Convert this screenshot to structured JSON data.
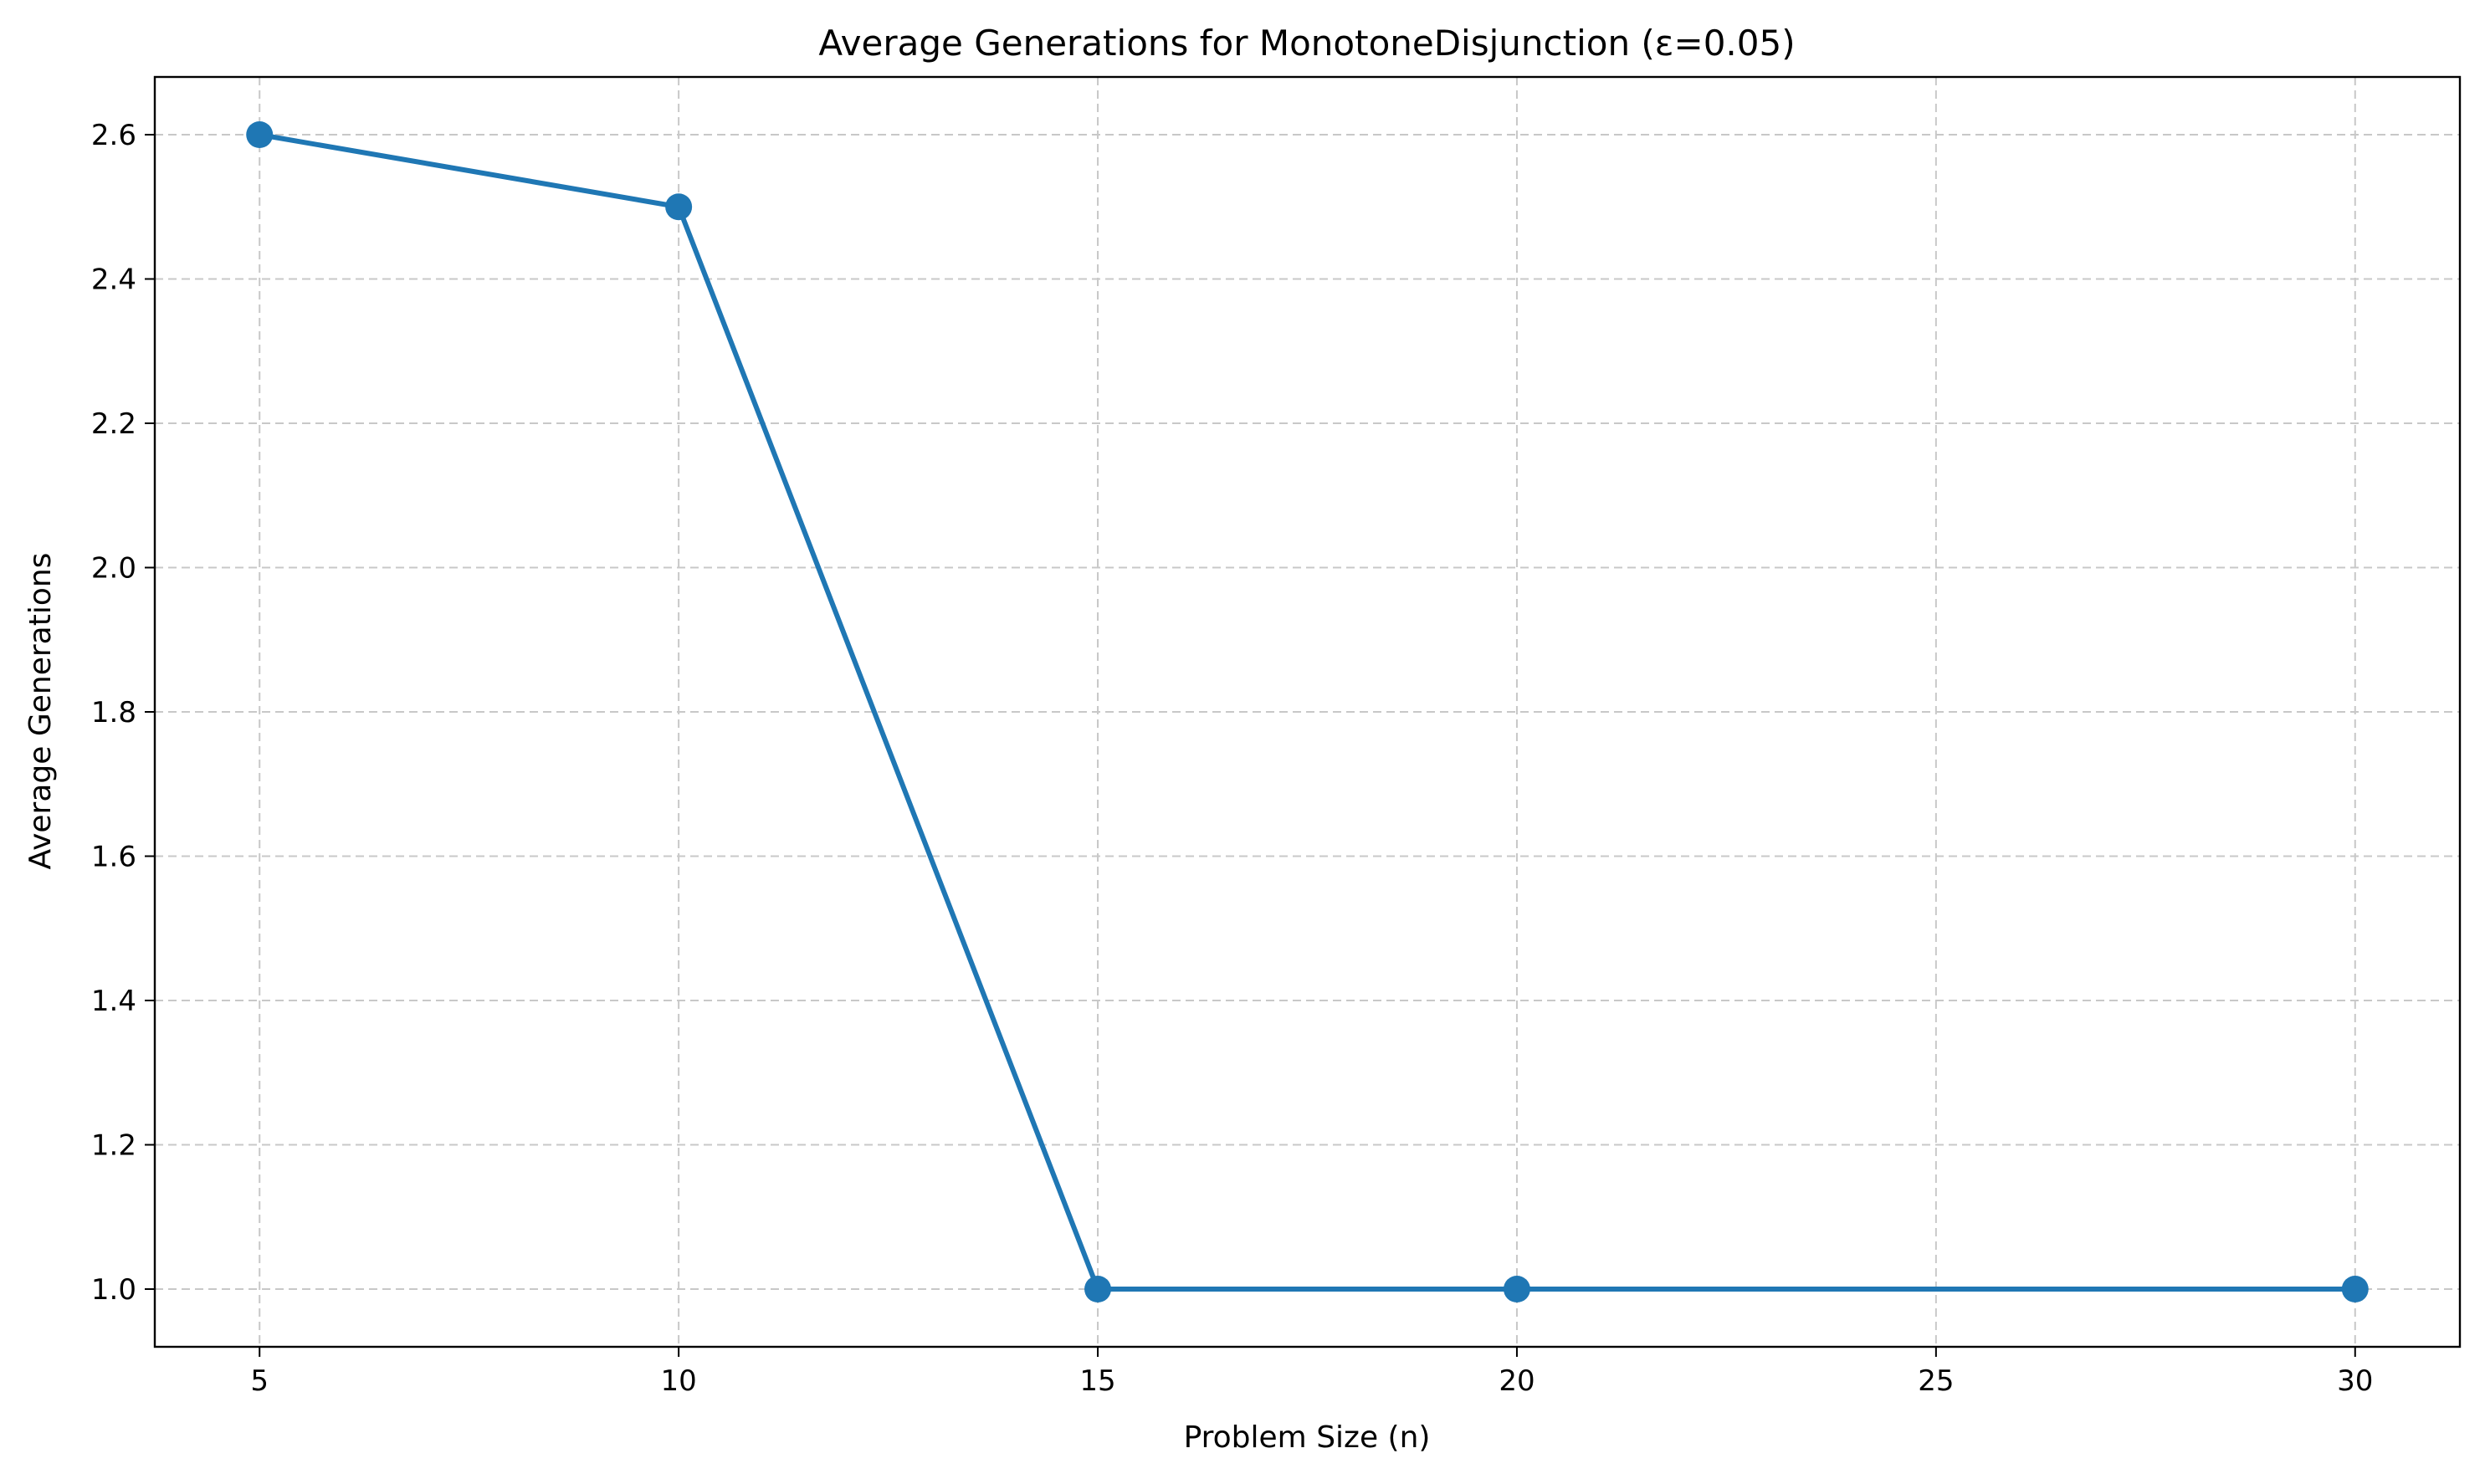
{
  "chart_data": {
    "type": "line",
    "title": "Average Generations for MonotoneDisjunction (ε=0.05)",
    "xlabel": "Problem Size (n)",
    "ylabel": "Average Generations",
    "x": [
      5,
      10,
      15,
      20,
      30
    ],
    "series": [
      {
        "values": [
          2.6,
          2.5,
          1.0,
          1.0,
          1.0
        ],
        "color": "#1f77b4",
        "marker": "circle"
      }
    ],
    "xticks": [
      5,
      10,
      15,
      20,
      25,
      30
    ],
    "xtick_labels": [
      "5",
      "10",
      "15",
      "20",
      "25",
      "30"
    ],
    "yticks": [
      1.0,
      1.2,
      1.4,
      1.6,
      1.8,
      2.0,
      2.2,
      2.4,
      2.6
    ],
    "ytick_labels": [
      "1.0",
      "1.2",
      "1.4",
      "1.6",
      "1.8",
      "2.0",
      "2.2",
      "2.4",
      "2.6"
    ],
    "xlim": [
      3.75,
      31.25
    ],
    "ylim": [
      0.92,
      2.68
    ],
    "grid": true,
    "grid_style": "dashed",
    "grid_color": "#c8c8c8"
  }
}
